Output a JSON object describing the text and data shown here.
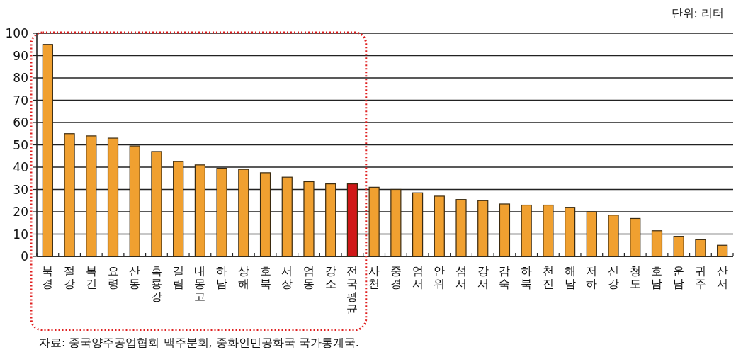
{
  "chart_data": {
    "type": "bar",
    "categories": [
      "북경",
      "절강",
      "복건",
      "요령",
      "산동",
      "흑룡강",
      "길림",
      "내몽고",
      "하남",
      "상해",
      "호북",
      "서장",
      "엄동",
      "강소",
      "전국평균",
      "사천",
      "중경",
      "엄서",
      "안위",
      "섬서",
      "강서",
      "감숙",
      "하북",
      "천진",
      "해남",
      "저하",
      "신강",
      "청도",
      "호남",
      "운남",
      "귀주",
      "산서"
    ],
    "values": [
      95,
      55,
      54,
      53,
      49.5,
      47,
      42.5,
      41,
      39.5,
      39,
      37.5,
      35.5,
      33.5,
      32.5,
      32.5,
      31,
      30,
      28.5,
      27,
      25.5,
      25,
      23.5,
      23,
      23,
      22,
      20,
      18.5,
      17,
      11.5,
      9,
      7.5,
      5
    ],
    "colors": [
      "#f0a030",
      "#f0a030",
      "#f0a030",
      "#f0a030",
      "#f0a030",
      "#f0a030",
      "#f0a030",
      "#f0a030",
      "#f0a030",
      "#f0a030",
      "#f0a030",
      "#f0a030",
      "#f0a030",
      "#f0a030",
      "#d01818",
      "#f0a030",
      "#f0a030",
      "#f0a030",
      "#f0a030",
      "#f0a030",
      "#f0a030",
      "#f0a030",
      "#f0a030",
      "#f0a030",
      "#f0a030",
      "#f0a030",
      "#f0a030",
      "#f0a030",
      "#f0a030",
      "#f0a030",
      "#f0a030",
      "#f0a030"
    ],
    "ylim": [
      0,
      100
    ],
    "yticks": [
      0,
      10,
      20,
      30,
      40,
      50,
      60,
      70,
      80,
      90,
      100
    ],
    "grid": "y",
    "annotations": [
      "단위: 리터",
      "자료: 중국양주공업협회 맥주분회, 중화인민공화국 국가통계국."
    ]
  }
}
